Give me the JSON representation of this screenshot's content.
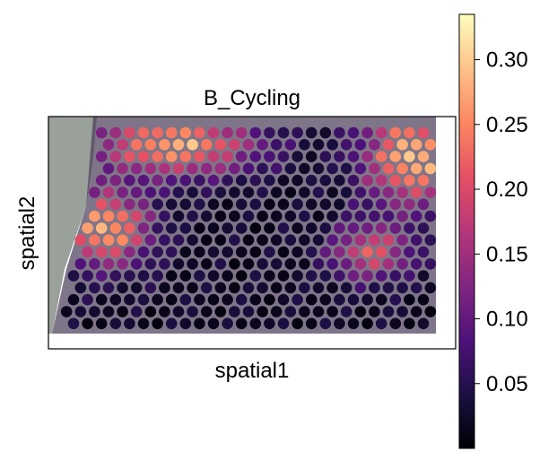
{
  "chart_data": {
    "type": "scatter",
    "title": "B_Cycling",
    "xlabel": "spatial1",
    "ylabel": "spatial2",
    "colormap": "magma",
    "colorbar": {
      "vmin": 0.0,
      "vmax": 0.335,
      "ticks": [
        "0.05",
        "0.10",
        "0.15",
        "0.20",
        "0.25",
        "0.30"
      ],
      "tick_values": [
        0.05,
        0.1,
        0.15,
        0.2,
        0.25,
        0.3
      ]
    },
    "hotspots": [
      {
        "col": 7,
        "row": 1,
        "sx": 4.0,
        "sy": 1.8,
        "peak": 0.26
      },
      {
        "col": 2,
        "row": 8,
        "sx": 2.2,
        "sy": 2.2,
        "peak": 0.27
      },
      {
        "col": 24,
        "row": 2,
        "sx": 2.4,
        "sy": 2.8,
        "peak": 0.28
      },
      {
        "col": 21,
        "row": 10,
        "sx": 2.0,
        "sy": 1.6,
        "peak": 0.19
      }
    ]
  }
}
